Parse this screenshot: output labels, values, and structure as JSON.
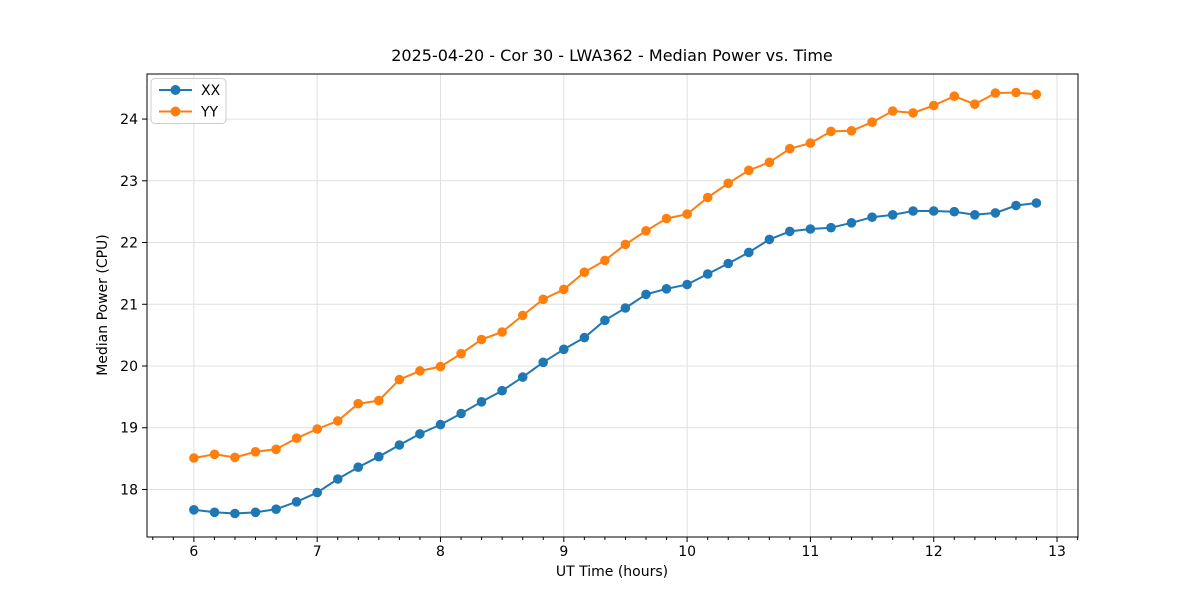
{
  "chart_data": {
    "type": "line",
    "title": "2025-04-20 - Cor 30 - LWA362 - Median Power vs. Time",
    "xlabel": "UT Time (hours)",
    "ylabel": "Median Power (CPU)",
    "xlim": [
      5.62,
      13.17
    ],
    "ylim": [
      17.23,
      24.73
    ],
    "xticks": [
      6,
      7,
      8,
      9,
      10,
      11,
      12,
      13
    ],
    "yticks": [
      18,
      19,
      20,
      21,
      22,
      23,
      24
    ],
    "x_minor_tick_step": 0.16667,
    "grid": true,
    "grid_color": "#e0e0e0",
    "legend": {
      "position": "upper-left",
      "entries": [
        "XX",
        "YY"
      ]
    },
    "x": [
      6.0,
      6.167,
      6.333,
      6.5,
      6.667,
      6.833,
      7.0,
      7.167,
      7.333,
      7.5,
      7.667,
      7.833,
      8.0,
      8.167,
      8.333,
      8.5,
      8.667,
      8.833,
      9.0,
      9.167,
      9.333,
      9.5,
      9.667,
      9.833,
      10.0,
      10.167,
      10.333,
      10.5,
      10.667,
      10.833,
      11.0,
      11.167,
      11.333,
      11.5,
      11.667,
      11.833,
      12.0,
      12.167,
      12.333,
      12.5,
      12.667,
      12.833
    ],
    "series": [
      {
        "name": "XX",
        "color": "#1f77b4",
        "marker": "circle",
        "values": [
          17.67,
          17.63,
          17.61,
          17.63,
          17.68,
          17.8,
          17.95,
          18.17,
          18.36,
          18.53,
          18.72,
          18.9,
          19.05,
          19.23,
          19.42,
          19.6,
          19.82,
          20.06,
          20.27,
          20.46,
          20.74,
          20.94,
          21.16,
          21.25,
          21.32,
          21.49,
          21.66,
          21.84,
          22.05,
          22.18,
          22.22,
          22.24,
          22.32,
          22.41,
          22.45,
          22.51,
          22.51,
          22.5,
          22.45,
          22.48,
          22.6,
          22.64
        ]
      },
      {
        "name": "YY",
        "color": "#ff7f0e",
        "marker": "circle",
        "values": [
          18.51,
          18.57,
          18.52,
          18.61,
          18.65,
          18.83,
          18.98,
          19.11,
          19.39,
          19.44,
          19.78,
          19.92,
          19.99,
          20.2,
          20.43,
          20.55,
          20.82,
          21.08,
          21.24,
          21.52,
          21.71,
          21.97,
          22.19,
          22.39,
          22.46,
          22.73,
          22.96,
          23.17,
          23.3,
          23.52,
          23.61,
          23.8,
          23.81,
          23.95,
          24.13,
          24.1,
          24.22,
          24.37,
          24.24,
          24.42,
          24.43,
          24.4
        ]
      }
    ]
  }
}
